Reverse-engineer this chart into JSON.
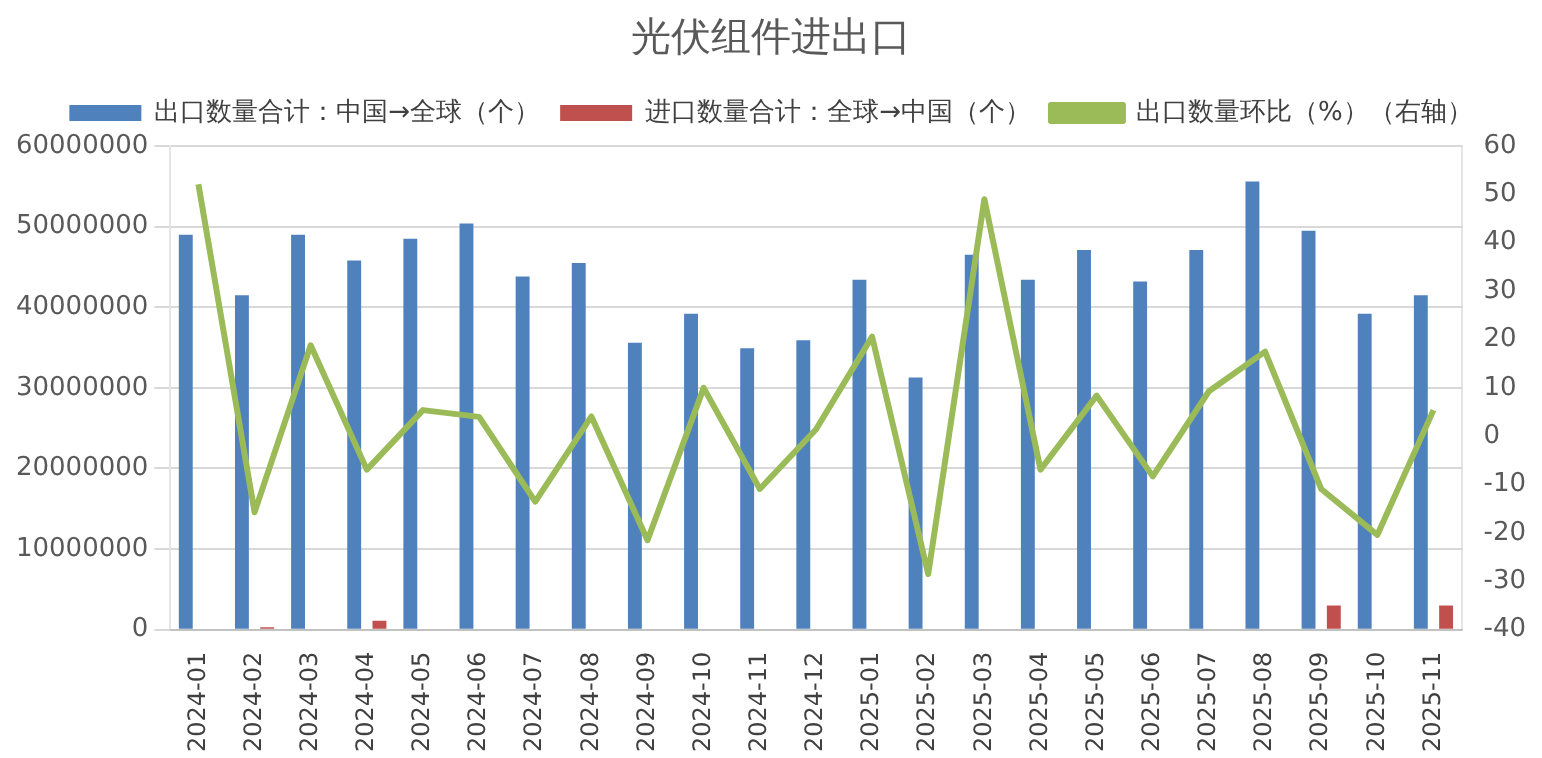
{
  "chart_data": {
    "type": "bar",
    "title": "光伏组件进出口",
    "categories": [
      "2024-01",
      "2024-02",
      "2024-03",
      "2024-04",
      "2024-05",
      "2024-06",
      "2024-07",
      "2024-08",
      "2024-09",
      "2024-10",
      "2024-11",
      "2024-12",
      "2025-01",
      "2025-02",
      "2025-03",
      "2025-04",
      "2025-05",
      "2025-06",
      "2025-07",
      "2025-08",
      "2025-09",
      "2025-10",
      "2025-11"
    ],
    "series": [
      {
        "name": "出口数量合计：中国→全球（个）",
        "color": "#4f81bd",
        "values": [
          49000000,
          41500000,
          49000000,
          45800000,
          48500000,
          50400000,
          43800000,
          45500000,
          35600000,
          39200000,
          34900000,
          35900000,
          43400000,
          31300000,
          46500000,
          43400000,
          47100000,
          43200000,
          47100000,
          55600000,
          49500000,
          39200000,
          41500000
        ]
      },
      {
        "name": "进口数量合计：全球→中国（个）",
        "color": "#c0504d",
        "values": [
          0,
          300000,
          0,
          1100000,
          0,
          0,
          0,
          0,
          0,
          0,
          0,
          0,
          0,
          0,
          0,
          0,
          0,
          0,
          0,
          0,
          3000000,
          0,
          3000000
        ]
      },
      {
        "name": "出口数量环比（%）（右轴）",
        "type": "line",
        "axis": "y2",
        "color": "#9bbb59",
        "values": [
          52.1,
          -15.7,
          18.8,
          -6.9,
          5.4,
          4.0,
          -13.5,
          4.1,
          -21.5,
          10.0,
          -10.9,
          1.4,
          20.6,
          -28.5,
          49.0,
          -6.9,
          8.4,
          -8.3,
          9.3,
          17.5,
          -10.9,
          -20.4,
          5.4
        ]
      }
    ],
    "ylim": [
      0,
      60000000
    ],
    "yticks": [
      0,
      10000000,
      20000000,
      30000000,
      40000000,
      50000000,
      60000000
    ],
    "y2lim": [
      -40,
      60
    ],
    "y2ticks": [
      -40,
      -30,
      -20,
      -10,
      0,
      10,
      20,
      30,
      40,
      50,
      60
    ],
    "grid": "y",
    "legend": "top",
    "marker": "none",
    "line_style": "solid"
  }
}
